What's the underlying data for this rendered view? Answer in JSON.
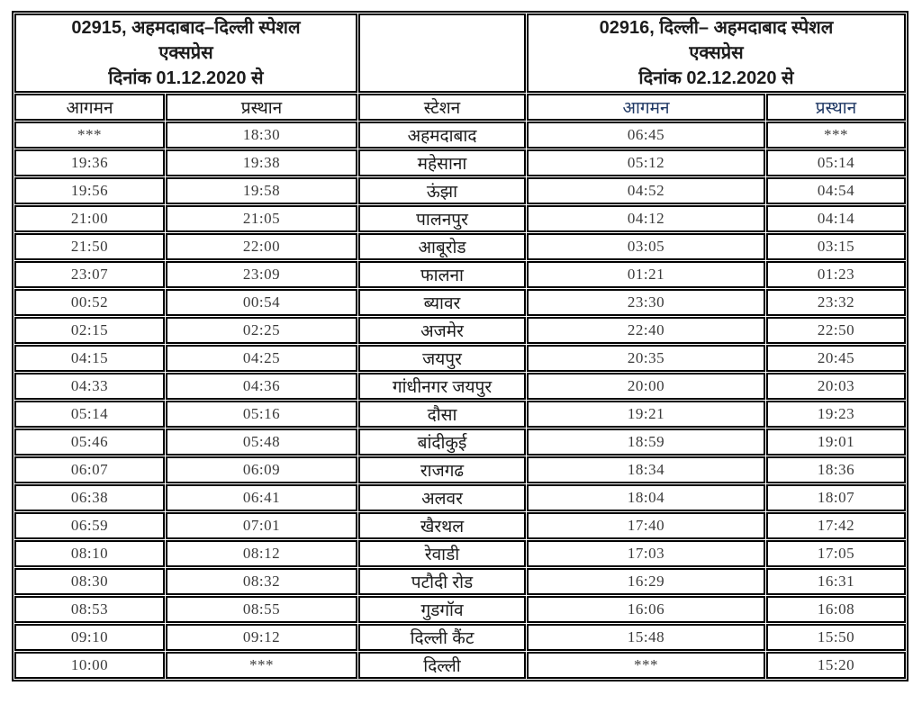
{
  "header": {
    "left": {
      "line1": "02915, अहमदाबाद–दिल्ली स्पेशल",
      "line2": "एक्सप्रेस",
      "line3": "दिनांक 01.12.2020 से"
    },
    "right": {
      "line1": "02916, दिल्ली– अहमदाबाद स्पेशल",
      "line2": "एक्सप्रेस",
      "line3": "दिनांक 02.12.2020 से"
    }
  },
  "columns": [
    {
      "key": "left_arrival",
      "label": "आगमन"
    },
    {
      "key": "left_departure",
      "label": "प्रस्थान"
    },
    {
      "key": "station",
      "label": "स्टेशन"
    },
    {
      "key": "right_arrival",
      "label": "आगमन"
    },
    {
      "key": "right_departure",
      "label": "प्रस्थान"
    }
  ],
  "rows": [
    [
      "***",
      "18:30",
      "अहमदाबाद",
      "06:45",
      "***"
    ],
    [
      "19:36",
      "19:38",
      "महेसाना",
      "05:12",
      "05:14"
    ],
    [
      "19:56",
      "19:58",
      "ऊंझा",
      "04:52",
      "04:54"
    ],
    [
      "21:00",
      "21:05",
      "पालनपुर",
      "04:12",
      "04:14"
    ],
    [
      "21:50",
      "22:00",
      "आबूरोड",
      "03:05",
      "03:15"
    ],
    [
      "23:07",
      "23:09",
      "फालना",
      "01:21",
      "01:23"
    ],
    [
      "00:52",
      "00:54",
      "ब्यावर",
      "23:30",
      "23:32"
    ],
    [
      "02:15",
      "02:25",
      "अजमेर",
      "22:40",
      "22:50"
    ],
    [
      "04:15",
      "04:25",
      "जयपुर",
      "20:35",
      "20:45"
    ],
    [
      "04:33",
      "04:36",
      "गांधीनगर जयपुर",
      "20:00",
      "20:03"
    ],
    [
      "05:14",
      "05:16",
      "दौसा",
      "19:21",
      "19:23"
    ],
    [
      "05:46",
      "05:48",
      "बांदीकुई",
      "18:59",
      "19:01"
    ],
    [
      "06:07",
      "06:09",
      "राजगढ",
      "18:34",
      "18:36"
    ],
    [
      "06:38",
      "06:41",
      "अलवर",
      "18:04",
      "18:07"
    ],
    [
      "06:59",
      "07:01",
      "खैरथल",
      "17:40",
      "17:42"
    ],
    [
      "08:10",
      "08:12",
      "रेवाडी",
      "17:03",
      "17:05"
    ],
    [
      "08:30",
      "08:32",
      "पटौदी रोड",
      "16:29",
      "16:31"
    ],
    [
      "08:53",
      "08:55",
      "गुडगॉव",
      "16:06",
      "16:08"
    ],
    [
      "09:10",
      "09:12",
      "दिल्ली कैंट",
      "15:48",
      "15:50"
    ],
    [
      "10:00",
      "***",
      "दिल्ली",
      "***",
      "15:20"
    ]
  ],
  "colors": {
    "border": "#000000",
    "text": "#1c1c1c",
    "time_text": "#3a3a3a",
    "right_header_blue": "#1f3864",
    "background": "#ffffff"
  }
}
